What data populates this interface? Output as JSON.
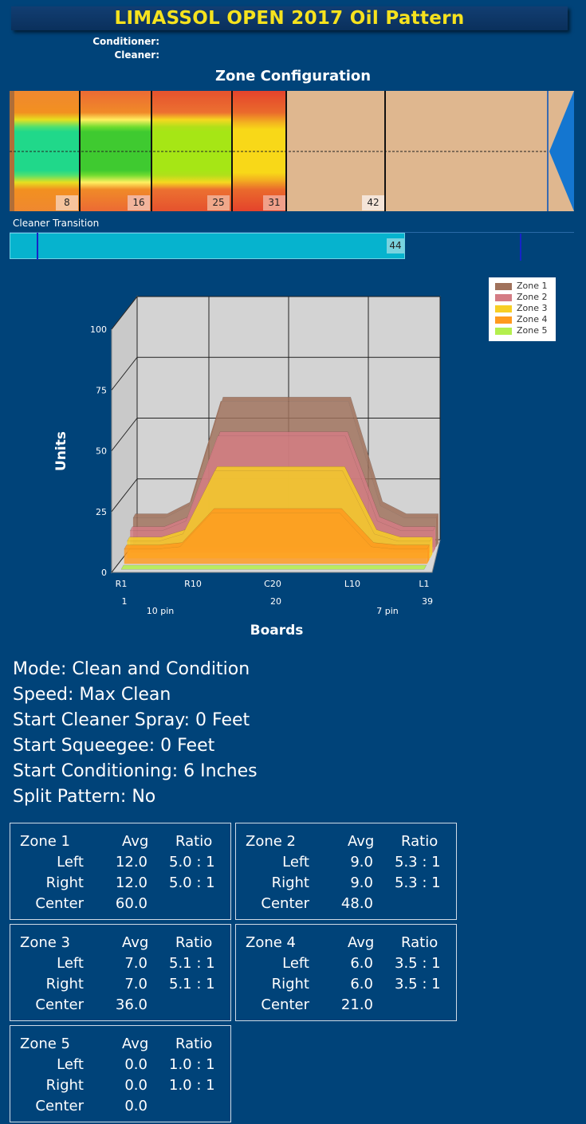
{
  "title": "LIMASSOL OPEN 2017 Oil Pattern",
  "header_labels": {
    "conditioner": "Conditioner:",
    "cleaner": "Cleaner:"
  },
  "zone_configuration": {
    "title": "Zone Configuration",
    "zone_end_markers": [
      "8",
      "16",
      "25",
      "31",
      "42"
    ]
  },
  "cleaner_transition": {
    "label": "Cleaner Transition",
    "value": "44"
  },
  "chart_data": {
    "type": "area",
    "title": "",
    "xlabel": "Boards",
    "ylabel": "Units",
    "ylim": [
      0,
      100
    ],
    "yticks": [
      "0",
      "25",
      "50",
      "75",
      "100"
    ],
    "x_tick_labels": [
      "R1",
      "R10",
      "C20",
      "L10",
      "L1"
    ],
    "board_numbers": [
      "1",
      "20",
      "39"
    ],
    "pin_labels": [
      "10 pin",
      "7 pin"
    ],
    "x": [
      1,
      5,
      8,
      12,
      14,
      26,
      28,
      32,
      35,
      39
    ],
    "series": [
      {
        "name": "Zone 1",
        "color": "#a0715b",
        "values": [
          12,
          12,
          17,
          60,
          60,
          60,
          60,
          17,
          12,
          12
        ]
      },
      {
        "name": "Zone 2",
        "color": "#d47c84",
        "values": [
          9,
          9,
          13,
          48,
          48,
          48,
          48,
          13,
          9,
          9
        ]
      },
      {
        "name": "Zone 3",
        "color": "#f7ce25",
        "values": [
          7,
          7,
          10,
          36,
          36,
          36,
          36,
          10,
          7,
          7
        ]
      },
      {
        "name": "Zone 4",
        "color": "#ff9a1e",
        "values": [
          6,
          6,
          7,
          21,
          21,
          21,
          21,
          7,
          6,
          6
        ]
      },
      {
        "name": "Zone 5",
        "color": "#b4ef4d",
        "values": [
          0,
          0,
          0,
          0,
          0,
          0,
          0,
          0,
          0,
          0
        ]
      }
    ],
    "grid": true,
    "legend_position": "top-right"
  },
  "settings": {
    "mode": "Mode: Clean and Condition",
    "speed": "Speed: Max Clean",
    "start_cleaner_spray": "Start Cleaner Spray: 0 Feet",
    "start_squeegee": "Start Squeegee: 0 Feet",
    "start_conditioning": "Start Conditioning: 6 Inches",
    "split_pattern": "Split Pattern: No"
  },
  "zone_tables": [
    {
      "zone": "Zone 1",
      "avg_header": "Avg",
      "ratio_header": "Ratio",
      "left_label": "Left",
      "left_avg": "12.0",
      "left_ratio": "5.0 : 1",
      "right_label": "Right",
      "right_avg": "12.0",
      "right_ratio": "5.0 : 1",
      "center_label": "Center",
      "center_avg": "60.0"
    },
    {
      "zone": "Zone 2",
      "avg_header": "Avg",
      "ratio_header": "Ratio",
      "left_label": "Left",
      "left_avg": "9.0",
      "left_ratio": "5.3 : 1",
      "right_label": "Right",
      "right_avg": "9.0",
      "right_ratio": "5.3 : 1",
      "center_label": "Center",
      "center_avg": "48.0"
    },
    {
      "zone": "Zone 3",
      "avg_header": "Avg",
      "ratio_header": "Ratio",
      "left_label": "Left",
      "left_avg": "7.0",
      "left_ratio": "5.1 : 1",
      "right_label": "Right",
      "right_avg": "7.0",
      "right_ratio": "5.1 : 1",
      "center_label": "Center",
      "center_avg": "36.0"
    },
    {
      "zone": "Zone 4",
      "avg_header": "Avg",
      "ratio_header": "Ratio",
      "left_label": "Left",
      "left_avg": "6.0",
      "left_ratio": "3.5 : 1",
      "right_label": "Right",
      "right_avg": "6.0",
      "right_ratio": "3.5 : 1",
      "center_label": "Center",
      "center_avg": "21.0"
    },
    {
      "zone": "Zone 5",
      "avg_header": "Avg",
      "ratio_header": "Ratio",
      "left_label": "Left",
      "left_avg": "0.0",
      "left_ratio": "1.0 : 1",
      "right_label": "Right",
      "right_avg": "0.0",
      "right_ratio": "1.0 : 1",
      "center_label": "Center",
      "center_avg": "0.0"
    }
  ]
}
